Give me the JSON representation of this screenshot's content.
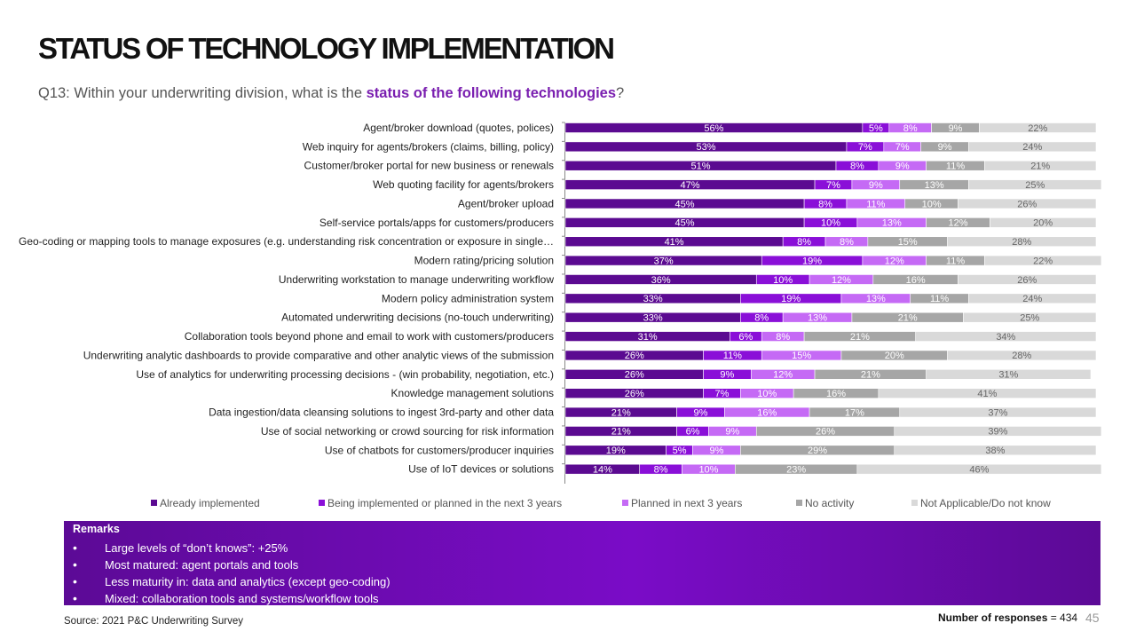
{
  "title": "STATUS OF TECHNOLOGY IMPLEMENTATION",
  "question": {
    "prefix": "Q13: Within your underwriting division, what is the ",
    "highlight": "status of the following technologies",
    "suffix": "?"
  },
  "colors": {
    "accent": "#7a1fb0",
    "remarks_bg": "#6a0bb0"
  },
  "chart_data": {
    "type": "bar",
    "orientation": "horizontal",
    "stacked": true,
    "normalized": true,
    "value_unit": "%",
    "xlim": [
      0,
      100
    ],
    "categories": [
      "Agent/broker download (quotes, polices)",
      "Web inquiry for agents/brokers (claims, billing, policy)",
      "Customer/broker portal for new business or renewals",
      "Web quoting facility for agents/brokers",
      "Agent/broker upload",
      "Self-service portals/apps for customers/producers",
      "Geo-coding or mapping tools to manage exposures (e.g. understanding risk concentration or exposure in single…",
      "Modern rating/pricing solution",
      "Underwriting workstation to manage underwriting workflow",
      "Modern policy administration system",
      "Automated underwriting decisions (no-touch underwriting)",
      "Collaboration tools beyond phone and email to work with customers/producers",
      "Underwriting analytic dashboards to provide comparative and other analytic views of the submission",
      "Use of analytics for underwriting processing decisions - (win probability, negotiation, etc.)",
      "Knowledge management solutions",
      "Data ingestion/data cleansing solutions to ingest 3rd-party and other data",
      "Use of social networking or crowd sourcing for risk information",
      "Use of chatbots for customers/producer inquiries",
      "Use of IoT devices or solutions"
    ],
    "series": [
      {
        "name": "Already implemented",
        "color": "#5b0a91",
        "label_color": "#ffffff",
        "values": [
          56,
          53,
          51,
          47,
          45,
          45,
          41,
          37,
          36,
          33,
          33,
          31,
          26,
          26,
          26,
          21,
          21,
          19,
          14
        ]
      },
      {
        "name": "Being implemented or planned in the next 3 years",
        "color": "#8a0fd8",
        "label_color": "#ffffff",
        "values": [
          5,
          7,
          8,
          7,
          8,
          10,
          8,
          19,
          10,
          19,
          8,
          6,
          11,
          9,
          7,
          9,
          6,
          5,
          8
        ]
      },
      {
        "name": "Planned in next 3 years",
        "color": "#c56af5",
        "label_color": "#ffffff",
        "values": [
          8,
          7,
          9,
          9,
          11,
          13,
          8,
          12,
          12,
          13,
          13,
          8,
          15,
          12,
          10,
          16,
          9,
          9,
          10
        ]
      },
      {
        "name": "No activity",
        "color": "#a6a6a6",
        "label_color": "#ffffff",
        "values": [
          9,
          9,
          11,
          13,
          10,
          12,
          15,
          11,
          16,
          11,
          21,
          21,
          20,
          21,
          16,
          17,
          26,
          29,
          23
        ]
      },
      {
        "name": "Not Applicable/Do not know",
        "color": "#d9d9d9",
        "label_color": "#666666",
        "values": [
          22,
          24,
          21,
          25,
          26,
          20,
          28,
          22,
          26,
          24,
          25,
          34,
          28,
          31,
          41,
          37,
          39,
          38,
          46
        ]
      }
    ]
  },
  "remarks": {
    "title": "Remarks",
    "items": [
      "Large levels of “don’t knows”: +25%",
      "Most matured: agent portals and tools",
      "Less maturity in: data and analytics (except geo-coding)",
      "Mixed: collaboration tools and systems/workflow tools"
    ]
  },
  "footer": {
    "source": "Source: 2021 P&C Underwriting Survey",
    "responses_label": "Number of responses",
    "responses_value": "= 434",
    "page_number": "45"
  }
}
